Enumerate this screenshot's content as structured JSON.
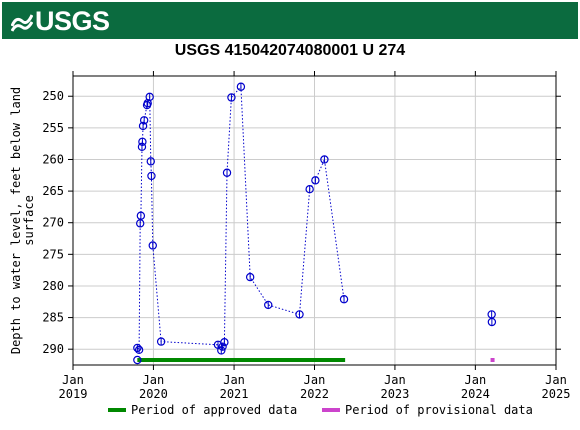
{
  "header": {
    "logo_text": "USGS",
    "brand_color": "#0b6b3f"
  },
  "chart_data": {
    "type": "scatter",
    "title": "USGS 415042074080001 U 274",
    "ylabel": "Depth to water level, feet below land surface",
    "ylabel_lines": [
      "Depth to water level, feet below land",
      "surface"
    ],
    "xlabel": "",
    "y_inverted": true,
    "ylim": [
      292.5,
      246.8
    ],
    "xlim": [
      "2019-01-01",
      "2025-01-01"
    ],
    "y_ticks": [
      250,
      255,
      260,
      265,
      270,
      275,
      280,
      285,
      290
    ],
    "x_ticks": [
      {
        "date": "2019-01-01",
        "month": "Jan",
        "year": "2019"
      },
      {
        "date": "2020-01-01",
        "month": "Jan",
        "year": "2020"
      },
      {
        "date": "2021-01-01",
        "month": "Jan",
        "year": "2021"
      },
      {
        "date": "2022-01-01",
        "month": "Jan",
        "year": "2022"
      },
      {
        "date": "2023-01-01",
        "month": "Jan",
        "year": "2023"
      },
      {
        "date": "2024-01-01",
        "month": "Jan",
        "year": "2024"
      },
      {
        "date": "2025-01-01",
        "month": "Jan",
        "year": "2025"
      }
    ],
    "grid": true,
    "series": [
      {
        "style": "dotted-line-with-circles",
        "color": "#0000cc",
        "connected": true,
        "points": [
          {
            "x": "2019-10-20",
            "y": 289.8
          },
          {
            "x": "2019-10-28",
            "y": 290.1
          },
          {
            "x": "2019-11-02",
            "y": 270.1
          },
          {
            "x": "2019-11-05",
            "y": 268.9
          },
          {
            "x": "2019-11-10",
            "y": 258.0
          },
          {
            "x": "2019-11-12",
            "y": 257.2
          },
          {
            "x": "2019-11-15",
            "y": 254.7
          },
          {
            "x": "2019-11-20",
            "y": 253.8
          },
          {
            "x": "2019-12-03",
            "y": 251.4
          },
          {
            "x": "2019-12-06",
            "y": 251.1
          },
          {
            "x": "2019-12-15",
            "y": 250.1
          },
          {
            "x": "2019-12-20",
            "y": 260.3
          },
          {
            "x": "2019-12-23",
            "y": 262.6
          },
          {
            "x": "2019-12-29",
            "y": 273.6
          },
          {
            "x": "2020-02-05",
            "y": 288.8
          },
          {
            "x": "2020-10-20",
            "y": 289.3
          },
          {
            "x": "2020-11-04",
            "y": 290.2
          },
          {
            "x": "2020-11-10",
            "y": 289.6
          },
          {
            "x": "2020-11-18",
            "y": 288.9
          },
          {
            "x": "2020-11-30",
            "y": 262.1
          },
          {
            "x": "2020-12-20",
            "y": 250.2
          },
          {
            "x": "2021-02-01",
            "y": 248.5
          },
          {
            "x": "2021-03-15",
            "y": 278.6
          },
          {
            "x": "2021-06-05",
            "y": 283.0
          },
          {
            "x": "2021-10-25",
            "y": 284.5
          },
          {
            "x": "2021-12-10",
            "y": 264.7
          },
          {
            "x": "2022-01-05",
            "y": 263.3
          },
          {
            "x": "2022-02-15",
            "y": 260.0
          },
          {
            "x": "2022-05-15",
            "y": 282.1
          }
        ]
      },
      {
        "style": "circles",
        "color": "#0000cc",
        "connected": false,
        "points": [
          {
            "x": "2024-03-15",
            "y": 284.5
          },
          {
            "x": "2024-03-16",
            "y": 285.7
          }
        ]
      }
    ],
    "periods": [
      {
        "start": "2019-10-20",
        "end": "2022-05-20",
        "color": "#008800",
        "kind": "approved"
      },
      {
        "start": "2024-03-10",
        "end": "2024-03-20",
        "color": "#cc44cc",
        "kind": "provisional"
      }
    ],
    "legend": {
      "placement": "bottom",
      "items": [
        {
          "label": "Period of approved data",
          "color": "#008800"
        },
        {
          "label": "Period of provisional data",
          "color": "#cc44cc"
        }
      ]
    }
  }
}
